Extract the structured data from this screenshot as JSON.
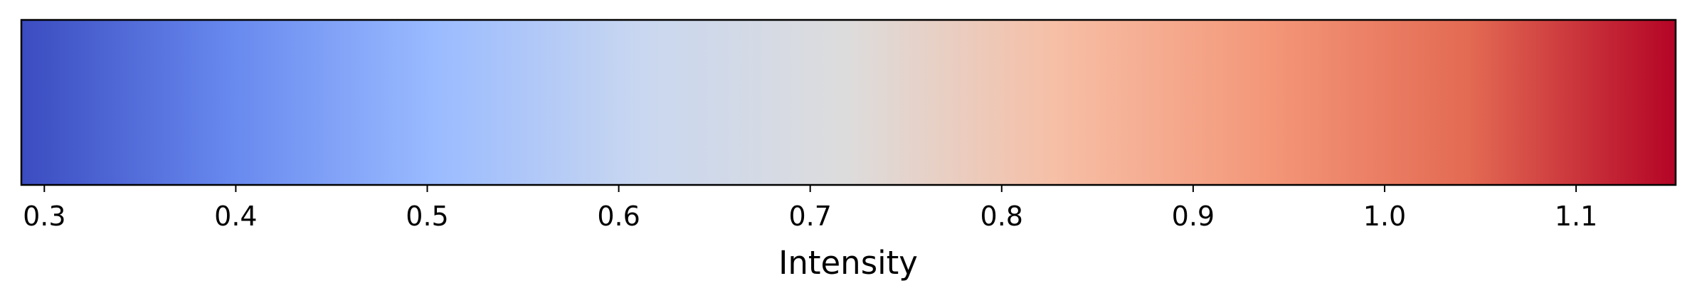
{
  "chart_data": {
    "type": "heatmap",
    "colormap": "coolwarm",
    "orientation": "horizontal",
    "xlabel": "Intensity",
    "xlim": [
      0.288,
      1.152
    ],
    "ticks": [
      0.3,
      0.4,
      0.5,
      0.6,
      0.7,
      0.8,
      0.9,
      1.0,
      1.1
    ],
    "tick_labels": [
      "0.3",
      "0.4",
      "0.5",
      "0.6",
      "0.7",
      "0.8",
      "0.9",
      "1.0",
      "1.1"
    ],
    "color_stops": [
      "#3b4cc0",
      "#6788ee",
      "#9abbff",
      "#c9d7f0",
      "#dddcdc",
      "#f6bfa6",
      "#f4987a",
      "#e36a53",
      "#b40426"
    ]
  }
}
